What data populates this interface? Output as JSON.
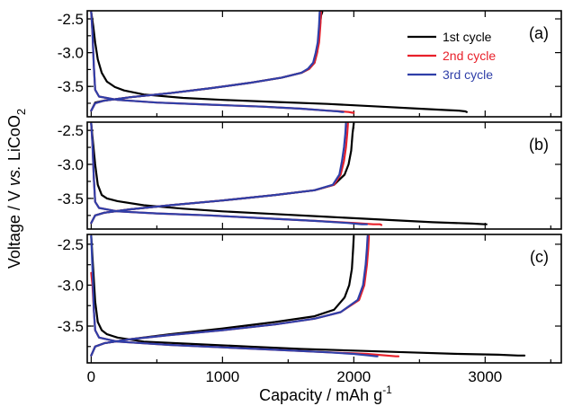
{
  "chart_data": {
    "type": "line",
    "xlabel": "Capacity / mAh g",
    "xlabel_sup": "-1",
    "ylabel_parts": [
      "Voltage / V ",
      "vs.",
      " LiCoO",
      "2"
    ],
    "xlim": [
      -30,
      3580
    ],
    "ylim": [
      -3.95,
      -2.38
    ],
    "yticks": [
      -2.5,
      -3.0,
      -3.5
    ],
    "ytick_labels": [
      "-2.5",
      "-3.0",
      "-3.5"
    ],
    "xticks": [
      0,
      1000,
      2000,
      3000
    ],
    "xtick_labels": [
      "0",
      "1000",
      "2000",
      "3000"
    ],
    "legend": {
      "placement": "top-right of panel (a)",
      "entries": [
        {
          "name": "1st cycle",
          "color": "#000000"
        },
        {
          "name": "2nd cycle",
          "color": "#e8202a"
        },
        {
          "name": "3rd cycle",
          "color": "#2f3fa8"
        }
      ]
    },
    "panels": [
      {
        "label": "(a)",
        "series": [
          {
            "name": "1st cycle",
            "color": "#000000",
            "x": [
              0,
              15,
              30,
              50,
              80,
              120,
              180,
              250,
              400,
              700,
              1000,
              1400,
              1800,
              2200,
              2500,
              2700,
              2800,
              2850,
              2860,
              null,
              0,
              30,
              100,
              300,
              600,
              900,
              1200,
              1450,
              1600,
              1660,
              1700,
              1720,
              1730,
              1740,
              1750,
              1760
            ],
            "y": [
              -2.4,
              -2.6,
              -2.85,
              -3.1,
              -3.3,
              -3.43,
              -3.51,
              -3.56,
              -3.62,
              -3.67,
              -3.7,
              -3.73,
              -3.76,
              -3.8,
              -3.83,
              -3.85,
              -3.86,
              -3.87,
              -3.88,
              null,
              -3.86,
              -3.74,
              -3.71,
              -3.66,
              -3.6,
              -3.53,
              -3.45,
              -3.37,
              -3.3,
              -3.24,
              -3.15,
              -3.0,
              -2.85,
              -2.65,
              -2.45,
              -2.4
            ]
          },
          {
            "name": "2nd cycle",
            "color": "#e8202a",
            "x": [
              0,
              10,
              20,
              30,
              60,
              200,
              500,
              900,
              1300,
              1600,
              1800,
              1900,
              1960,
              1990,
              2000,
              null,
              0,
              30,
              100,
              300,
              600,
              900,
              1200,
              1450,
              1600,
              1660,
              1700,
              1720,
              1735,
              1745,
              1750
            ],
            "y": [
              -2.4,
              -2.7,
              -3.2,
              -3.55,
              -3.65,
              -3.7,
              -3.74,
              -3.77,
              -3.8,
              -3.83,
              -3.86,
              -3.87,
              -3.88,
              -3.89,
              -3.89,
              null,
              -3.86,
              -3.75,
              -3.71,
              -3.66,
              -3.6,
              -3.53,
              -3.45,
              -3.37,
              -3.3,
              -3.24,
              -3.15,
              -3.0,
              -2.85,
              -2.6,
              -2.4
            ]
          },
          {
            "name": "3rd cycle",
            "color": "#2f3fa8",
            "x": [
              0,
              10,
              20,
              30,
              60,
              200,
              500,
              900,
              1300,
              1600,
              1800,
              1880,
              1910,
              1920,
              null,
              0,
              30,
              100,
              300,
              600,
              900,
              1200,
              1450,
              1600,
              1650,
              1690,
              1710,
              1725,
              1735,
              1740
            ],
            "y": [
              -2.4,
              -2.7,
              -3.2,
              -3.55,
              -3.65,
              -3.7,
              -3.74,
              -3.77,
              -3.8,
              -3.83,
              -3.86,
              -3.87,
              -3.88,
              -3.88,
              null,
              -3.86,
              -3.75,
              -3.71,
              -3.66,
              -3.6,
              -3.53,
              -3.45,
              -3.37,
              -3.3,
              -3.24,
              -3.15,
              -3.0,
              -2.85,
              -2.6,
              -2.4
            ]
          }
        ]
      },
      {
        "label": "(b)",
        "series": [
          {
            "name": "1st cycle",
            "color": "#000000",
            "x": [
              0,
              15,
              30,
              50,
              80,
              120,
              200,
              400,
              700,
              1000,
              1400,
              1800,
              2200,
              2600,
              2900,
              3000,
              3010,
              null,
              0,
              30,
              100,
              300,
              600,
              1000,
              1400,
              1700,
              1850,
              1930,
              1960,
              1980,
              1990,
              2000
            ],
            "y": [
              -2.4,
              -2.7,
              -3.0,
              -3.3,
              -3.45,
              -3.5,
              -3.54,
              -3.6,
              -3.65,
              -3.69,
              -3.73,
              -3.77,
              -3.81,
              -3.85,
              -3.87,
              -3.88,
              -3.88,
              null,
              -3.86,
              -3.75,
              -3.71,
              -3.66,
              -3.6,
              -3.53,
              -3.45,
              -3.38,
              -3.3,
              -3.15,
              -3.0,
              -2.8,
              -2.55,
              -2.4
            ]
          },
          {
            "name": "2nd cycle",
            "color": "#e8202a",
            "x": [
              0,
              10,
              20,
              30,
              60,
              200,
              500,
              900,
              1300,
              1700,
              2000,
              2150,
              2200,
              2210,
              null,
              0,
              30,
              100,
              300,
              600,
              1000,
              1400,
              1700,
              1850,
              1900,
              1925,
              1940,
              1950,
              1955
            ],
            "y": [
              -2.4,
              -2.7,
              -3.2,
              -3.55,
              -3.64,
              -3.69,
              -3.72,
              -3.75,
              -3.79,
              -3.83,
              -3.86,
              -3.88,
              -3.88,
              -3.89,
              null,
              -3.86,
              -3.75,
              -3.71,
              -3.66,
              -3.6,
              -3.53,
              -3.45,
              -3.38,
              -3.3,
              -3.15,
              -2.95,
              -2.75,
              -2.55,
              -2.4
            ]
          },
          {
            "name": "3rd cycle",
            "color": "#2f3fa8",
            "x": [
              0,
              10,
              20,
              30,
              60,
              200,
              500,
              900,
              1300,
              1700,
              1950,
              2060,
              2090,
              2100,
              null,
              0,
              30,
              100,
              300,
              600,
              1000,
              1400,
              1700,
              1840,
              1890,
              1910,
              1925,
              1935,
              1940
            ],
            "y": [
              -2.4,
              -2.7,
              -3.2,
              -3.55,
              -3.64,
              -3.69,
              -3.72,
              -3.75,
              -3.79,
              -3.83,
              -3.86,
              -3.88,
              -3.88,
              -3.88,
              null,
              -3.86,
              -3.75,
              -3.71,
              -3.66,
              -3.6,
              -3.53,
              -3.45,
              -3.38,
              -3.3,
              -3.15,
              -2.95,
              -2.75,
              -2.55,
              -2.4
            ]
          }
        ]
      },
      {
        "label": "(c)",
        "series": [
          {
            "name": "1st cycle",
            "color": "#000000",
            "x": [
              0,
              15,
              30,
              50,
              80,
              120,
              200,
              400,
              800,
              1200,
              1600,
              2000,
              2400,
              2800,
              3100,
              3250,
              3300,
              null,
              0,
              30,
              100,
              300,
              600,
              1000,
              1400,
              1700,
              1850,
              1930,
              1965,
              1985,
              1995,
              2000
            ],
            "y": [
              -2.4,
              -2.8,
              -3.2,
              -3.45,
              -3.55,
              -3.6,
              -3.64,
              -3.69,
              -3.72,
              -3.75,
              -3.78,
              -3.8,
              -3.82,
              -3.84,
              -3.85,
              -3.86,
              -3.86,
              null,
              -3.86,
              -3.75,
              -3.71,
              -3.66,
              -3.6,
              -3.53,
              -3.45,
              -3.38,
              -3.3,
              -3.15,
              -3.0,
              -2.8,
              -2.55,
              -2.4
            ]
          },
          {
            "name": "2nd cycle",
            "color": "#e8202a",
            "x": [
              0,
              10,
              20,
              30,
              60,
              200,
              600,
              1000,
              1400,
              1800,
              2100,
              2250,
              2320,
              2340,
              null,
              0,
              30,
              100,
              300,
              600,
              1000,
              1400,
              1700,
              1900,
              2040,
              2080,
              2100,
              2110,
              2115
            ],
            "y": [
              -2.85,
              -3.0,
              -3.3,
              -3.55,
              -3.64,
              -3.69,
              -3.73,
              -3.76,
              -3.79,
              -3.82,
              -3.84,
              -3.86,
              -3.87,
              -3.87,
              null,
              -3.86,
              -3.75,
              -3.71,
              -3.66,
              -3.61,
              -3.55,
              -3.48,
              -3.41,
              -3.33,
              -3.18,
              -3.0,
              -2.75,
              -2.55,
              -2.4
            ]
          },
          {
            "name": "3rd cycle",
            "color": "#2f3fa8",
            "x": [
              0,
              10,
              20,
              30,
              60,
              200,
              600,
              1000,
              1400,
              1800,
              2000,
              2120,
              2170,
              2180,
              null,
              0,
              30,
              100,
              300,
              600,
              1000,
              1400,
              1700,
              1900,
              2030,
              2070,
              2090,
              2100,
              2105
            ],
            "y": [
              -2.4,
              -2.8,
              -3.3,
              -3.55,
              -3.64,
              -3.69,
              -3.73,
              -3.76,
              -3.79,
              -3.82,
              -3.84,
              -3.86,
              -3.87,
              -3.87,
              null,
              -3.86,
              -3.75,
              -3.71,
              -3.66,
              -3.61,
              -3.55,
              -3.48,
              -3.41,
              -3.33,
              -3.18,
              -3.0,
              -2.75,
              -2.55,
              -2.4
            ]
          }
        ]
      }
    ]
  }
}
